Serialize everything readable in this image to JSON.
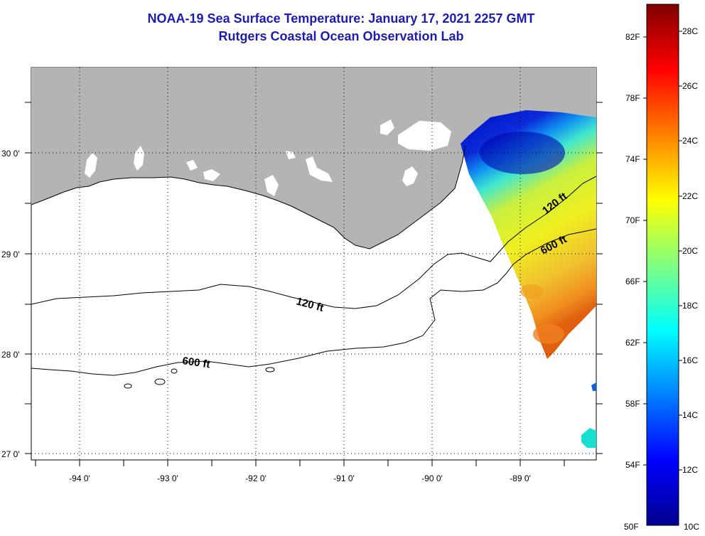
{
  "title": {
    "line1": "NOAA-19 Sea Surface Temperature:  January 17, 2021 2257 GMT",
    "line2": "Rutgers Coastal Ocean Observation Lab"
  },
  "axes": {
    "longitude_ticks": [
      "-94 0'",
      "-93 0'",
      "-92 0'",
      "-91 0'",
      "-90 0'",
      "-89 0'"
    ],
    "latitude_ticks": [
      "30 0'",
      "29 0'",
      "28 0'",
      "27 0'"
    ],
    "lon_range": [
      -94.55,
      -88.2
    ],
    "lat_range": [
      26.98,
      29.85
    ],
    "grid": "dotted"
  },
  "contours": [
    {
      "label": "120 ft"
    },
    {
      "label": "600 ft"
    }
  ],
  "colorbar": {
    "fahrenheit_ticks": [
      "82F",
      "78F",
      "74F",
      "70F",
      "66F",
      "62F",
      "58F",
      "54F",
      "50F"
    ],
    "celsius_ticks": [
      "28C",
      "26C",
      "24C",
      "22C",
      "20C",
      "18C",
      "16C",
      "14C",
      "12C",
      "10C"
    ],
    "range_c": [
      10,
      29
    ]
  },
  "colors": {
    "land": "#b4b4b4",
    "title": "#1c1cb4",
    "ocean": "#ffffff"
  }
}
